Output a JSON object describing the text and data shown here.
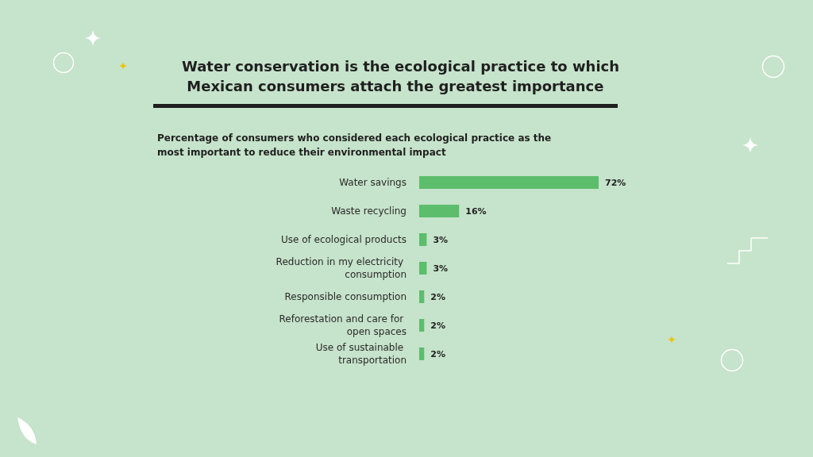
{
  "chart_data": {
    "type": "bar",
    "orientation": "horizontal",
    "title": "Water conservation is the ecological practice to which Mexican consumers attach the greatest importance",
    "subtitle": "Percentage of consumers who considered each ecological practice as the most important to reduce their environmental impact",
    "categories": [
      "Water savings",
      "Waste recycling",
      "Use of ecological products",
      "Reduction in my electricity consumption",
      "Responsible consumption",
      "Reforestation and care for open spaces",
      "Use of sustainable transportation"
    ],
    "values": [
      72,
      16,
      3,
      3,
      2,
      2,
      2
    ],
    "value_labels": [
      "72%",
      "16%",
      "3%",
      "3%",
      "2%",
      "2%",
      "2%"
    ],
    "color": "#5cbd6c"
  }
}
